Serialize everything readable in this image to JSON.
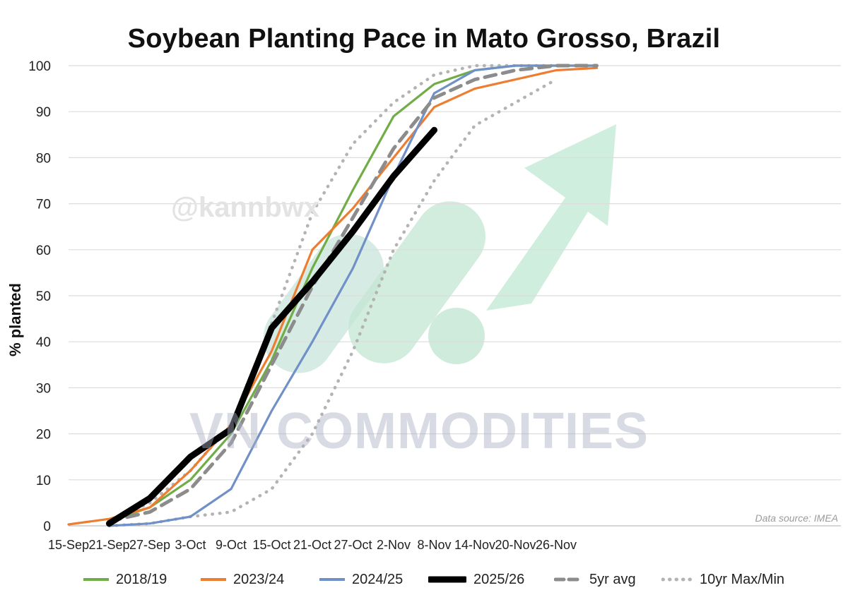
{
  "chart_data": {
    "type": "line",
    "title": "Soybean Planting Pace in Mato Grosso, Brazil",
    "xlabel": "",
    "ylabel": "% planted",
    "ylim": [
      0,
      100
    ],
    "yticks": [
      0,
      10,
      20,
      30,
      40,
      50,
      60,
      70,
      80,
      90,
      100
    ],
    "xticks": [
      "15-Sep",
      "21-Sep",
      "27-Sep",
      "3-Oct",
      "9-Oct",
      "15-Oct",
      "21-Oct",
      "27-Oct",
      "2-Nov",
      "8-Nov",
      "14-Nov",
      "20-Nov",
      "26-Nov"
    ],
    "grid": "horizontal",
    "legend_position": "bottom",
    "annotation": "Data source: IMEA",
    "series": [
      {
        "name": "2018/19",
        "color": "#70ad47",
        "style": "solid",
        "points": [
          [
            "21-Sep",
            1
          ],
          [
            "27-Sep",
            4
          ],
          [
            "3-Oct",
            10
          ],
          [
            "9-Oct",
            20
          ],
          [
            "15-Oct",
            36
          ],
          [
            "21-Oct",
            56
          ],
          [
            "27-Oct",
            73
          ],
          [
            "2-Nov",
            89
          ],
          [
            "8-Nov",
            96
          ],
          [
            "14-Nov",
            99
          ],
          [
            "20-Nov",
            100
          ],
          [
            "26-Nov",
            100
          ],
          [
            "2-Dec",
            100
          ]
        ]
      },
      {
        "name": "2023/24",
        "color": "#ed7d31",
        "style": "solid",
        "points": [
          [
            "15-Sep",
            0.3
          ],
          [
            "21-Sep",
            1.5
          ],
          [
            "27-Sep",
            4
          ],
          [
            "3-Oct",
            12
          ],
          [
            "9-Oct",
            22
          ],
          [
            "15-Oct",
            38
          ],
          [
            "21-Oct",
            60
          ],
          [
            "27-Oct",
            69
          ],
          [
            "2-Nov",
            80
          ],
          [
            "8-Nov",
            91
          ],
          [
            "14-Nov",
            95
          ],
          [
            "20-Nov",
            97
          ],
          [
            "26-Nov",
            99
          ],
          [
            "2-Dec",
            99.5
          ]
        ]
      },
      {
        "name": "2024/25",
        "color": "#6f91c8",
        "style": "solid",
        "points": [
          [
            "21-Sep",
            0
          ],
          [
            "27-Sep",
            0.5
          ],
          [
            "3-Oct",
            2
          ],
          [
            "9-Oct",
            8
          ],
          [
            "15-Oct",
            25
          ],
          [
            "21-Oct",
            40
          ],
          [
            "27-Oct",
            56
          ],
          [
            "2-Nov",
            76
          ],
          [
            "8-Nov",
            94
          ],
          [
            "14-Nov",
            99
          ],
          [
            "20-Nov",
            100
          ],
          [
            "26-Nov",
            100
          ],
          [
            "2-Dec",
            100
          ]
        ]
      },
      {
        "name": "2025/26",
        "color": "#000000",
        "style": "bold",
        "points": [
          [
            "21-Sep",
            0.5
          ],
          [
            "27-Sep",
            6
          ],
          [
            "3-Oct",
            15
          ],
          [
            "9-Oct",
            21
          ],
          [
            "15-Oct",
            43
          ],
          [
            "21-Oct",
            53
          ],
          [
            "27-Oct",
            64
          ],
          [
            "2-Nov",
            76
          ],
          [
            "8-Nov",
            86
          ]
        ]
      },
      {
        "name": "5yr avg",
        "color": "#8c8c8c",
        "style": "dashed",
        "points": [
          [
            "21-Sep",
            1
          ],
          [
            "27-Sep",
            3
          ],
          [
            "3-Oct",
            8
          ],
          [
            "9-Oct",
            18
          ],
          [
            "15-Oct",
            35
          ],
          [
            "21-Oct",
            52
          ],
          [
            "27-Oct",
            67
          ],
          [
            "2-Nov",
            82
          ],
          [
            "8-Nov",
            93
          ],
          [
            "14-Nov",
            97
          ],
          [
            "20-Nov",
            99
          ],
          [
            "26-Nov",
            100
          ],
          [
            "2-Dec",
            100
          ]
        ]
      },
      {
        "name": "10yr Max/Min",
        "color": "#b3b3b3",
        "style": "dotted",
        "points": [
          [
            "21-Sep",
            1
          ],
          [
            "27-Sep",
            5
          ],
          [
            "3-Oct",
            12
          ],
          [
            "9-Oct",
            22
          ],
          [
            "15-Oct",
            44
          ],
          [
            "21-Oct",
            68
          ],
          [
            "27-Oct",
            83
          ],
          [
            "2-Nov",
            92
          ],
          [
            "8-Nov",
            98
          ],
          [
            "14-Nov",
            100
          ],
          [
            "20-Nov",
            100
          ],
          [
            "26-Nov",
            100
          ]
        ]
      },
      {
        "name": "10yr Max/Min (min)",
        "color": "#b3b3b3",
        "style": "dotted",
        "points": [
          [
            "21-Sep",
            0
          ],
          [
            "27-Sep",
            0.5
          ],
          [
            "3-Oct",
            2
          ],
          [
            "9-Oct",
            3
          ],
          [
            "15-Oct",
            8
          ],
          [
            "21-Oct",
            20
          ],
          [
            "27-Oct",
            38
          ],
          [
            "2-Nov",
            60
          ],
          [
            "8-Nov",
            75
          ],
          [
            "14-Nov",
            87
          ],
          [
            "20-Nov",
            92
          ],
          [
            "26-Nov",
            97
          ]
        ]
      }
    ]
  },
  "watermarks": {
    "handle": "@kannbwx",
    "brand": "VN COMMODITIES"
  },
  "legend": [
    {
      "label": "2018/19",
      "color": "#70ad47",
      "style": "solid"
    },
    {
      "label": "2023/24",
      "color": "#ed7d31",
      "style": "solid"
    },
    {
      "label": "2024/25",
      "color": "#6f91c8",
      "style": "solid"
    },
    {
      "label": "2025/26",
      "color": "#000000",
      "style": "bold"
    },
    {
      "label": "5yr avg",
      "color": "#8c8c8c",
      "style": "dashed"
    },
    {
      "label": "10yr Max/Min",
      "color": "#b3b3b3",
      "style": "dotted"
    }
  ]
}
